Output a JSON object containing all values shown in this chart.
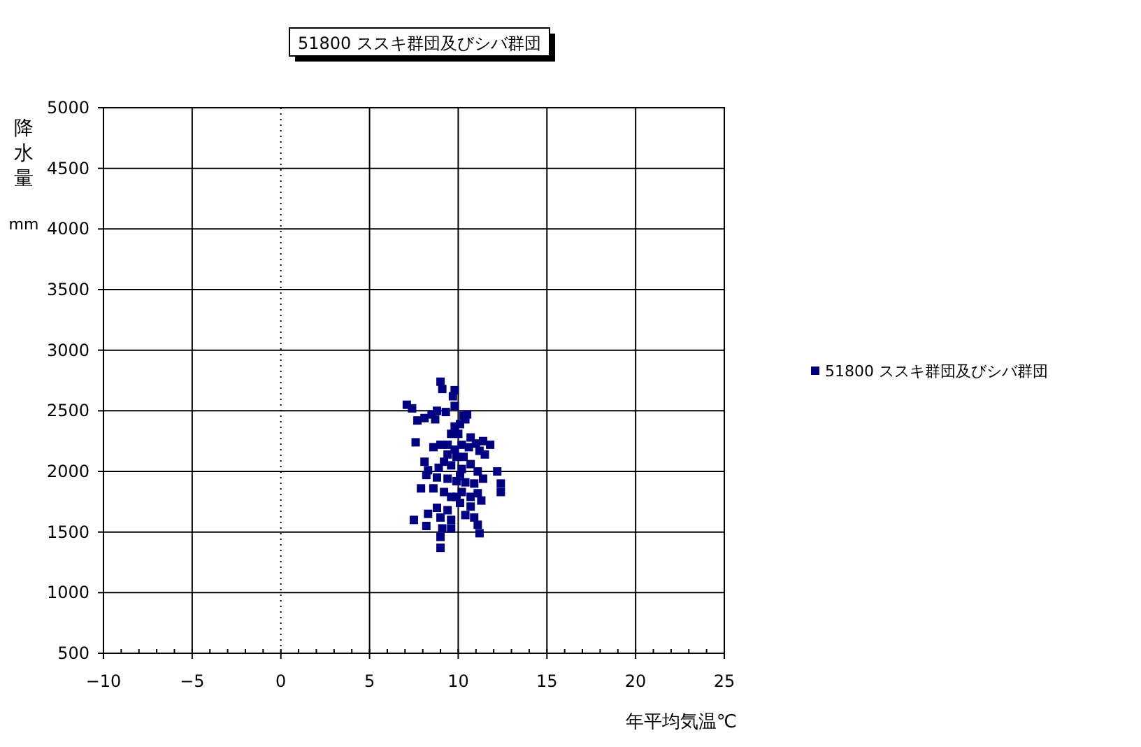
{
  "chart_data": {
    "type": "scatter",
    "title": "51800 ススキ群団及びシバ群団",
    "xlabel": "年平均気温℃",
    "ylabel": "降水量 mm",
    "xlim": [
      -10,
      25
    ],
    "xticks": [
      -10,
      -5,
      0,
      5,
      10,
      15,
      20,
      25
    ],
    "ylim": [
      500,
      5000
    ],
    "yticks": [
      500,
      1000,
      1500,
      2000,
      2500,
      3000,
      3500,
      4000,
      4500,
      5000
    ],
    "grid": true,
    "legend": "right",
    "marker": "square",
    "ref_lines": [
      {
        "axis": "x",
        "value": 0,
        "line_style": "dotted"
      }
    ],
    "series": [
      {
        "name": "51800 ススキ群団及びシバ群団",
        "color": "#000080",
        "x": [
          7.1,
          7.4,
          9.0,
          9.1,
          9.7,
          9.8,
          9.8,
          7.7,
          8.1,
          8.5,
          8.7,
          8.8,
          9.3,
          10.3,
          10.5,
          10.4,
          10.1,
          9.8,
          9.6,
          10.0,
          10.7,
          7.6,
          8.6,
          9.0,
          9.4,
          9.8,
          10.2,
          10.6,
          11.0,
          11.4,
          11.8,
          11.2,
          11.5,
          9.4,
          9.2,
          8.1,
          8.3,
          8.9,
          9.6,
          10.2,
          10.7,
          11.1,
          12.2,
          12.4,
          12.4,
          11.4,
          10.9,
          10.4,
          9.9,
          9.4,
          8.8,
          8.2,
          7.9,
          8.6,
          9.2,
          9.6,
          10.2,
          10.7,
          11.1,
          11.3,
          10.7,
          10.1,
          9.4,
          8.8,
          8.3,
          9.0,
          9.6,
          10.4,
          10.9,
          11.1,
          7.5,
          8.2,
          9.1,
          9.0,
          11.2,
          9.0,
          9.6,
          9.9,
          10.3,
          10.1,
          9.9
        ],
        "values": [
          2550,
          2520,
          2740,
          2680,
          2620,
          2670,
          2540,
          2420,
          2440,
          2470,
          2430,
          2500,
          2490,
          2460,
          2470,
          2430,
          2390,
          2370,
          2310,
          2310,
          2280,
          2240,
          2200,
          2220,
          2220,
          2180,
          2220,
          2200,
          2230,
          2250,
          2220,
          2170,
          2140,
          2140,
          2080,
          2080,
          2010,
          2030,
          2050,
          2020,
          2060,
          2000,
          2000,
          1900,
          1830,
          1940,
          1900,
          1910,
          1920,
          1940,
          1950,
          1970,
          1860,
          1860,
          1830,
          1790,
          1830,
          1790,
          1820,
          1760,
          1710,
          1740,
          1680,
          1700,
          1650,
          1620,
          1600,
          1640,
          1620,
          1560,
          1600,
          1550,
          1530,
          1460,
          1490,
          1370,
          1530,
          2120,
          2120,
          1960,
          1790
        ]
      }
    ]
  }
}
